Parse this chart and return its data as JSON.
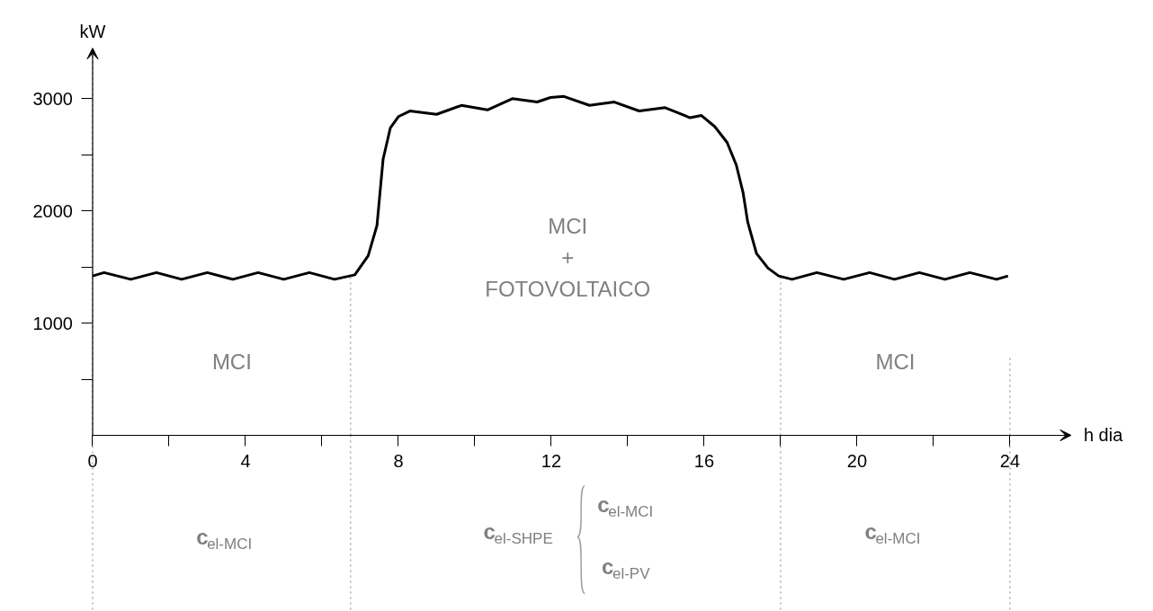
{
  "chart_data": {
    "type": "line",
    "xlabel": "h dia",
    "ylabel": "kW",
    "x": [
      0,
      0.3,
      1.0,
      1.67,
      2.33,
      3.0,
      3.67,
      4.33,
      5.0,
      5.67,
      6.33,
      6.86,
      7.21,
      7.44,
      7.6,
      7.79,
      8.0,
      8.3,
      9.0,
      9.65,
      10.33,
      10.98,
      11.63,
      11.98,
      12.33,
      13.0,
      13.65,
      14.3,
      14.98,
      15.63,
      15.93,
      16.28,
      16.6,
      16.84,
      17.02,
      17.14,
      17.37,
      17.67,
      17.95,
      18.3,
      18.95,
      19.65,
      20.33,
      20.98,
      21.63,
      22.3,
      22.95,
      23.65,
      23.95
    ],
    "series": [
      {
        "color": "#000000",
        "values": [
          1420,
          1450,
          1390,
          1450,
          1390,
          1450,
          1390,
          1450,
          1390,
          1450,
          1390,
          1430,
          1600,
          1870,
          2460,
          2740,
          2840,
          2890,
          2860,
          2940,
          2900,
          3000,
          2970,
          3010,
          3020,
          2940,
          2970,
          2890,
          2920,
          2830,
          2850,
          2750,
          2610,
          2410,
          2160,
          1900,
          1620,
          1490,
          1420,
          1390,
          1450,
          1390,
          1450,
          1390,
          1450,
          1390,
          1450,
          1390,
          1420
        ]
      }
    ],
    "xlim": [
      0,
      25.6
    ],
    "ylim": [
      0,
      3450
    ],
    "xticks": [
      0,
      {
        "value": 2,
        "label": null
      },
      4,
      {
        "value": 6,
        "label": null
      },
      8,
      {
        "value": 10,
        "label": null
      },
      12,
      {
        "value": 14,
        "label": null
      },
      16,
      {
        "value": 18,
        "label": null
      },
      20,
      {
        "value": 22,
        "label": null
      },
      24
    ],
    "yticks": [
      {
        "value": 500,
        "label": null
      },
      1000,
      {
        "value": 1500,
        "label": null
      },
      2000,
      {
        "value": 2500,
        "label": null
      },
      3000
    ],
    "grid": false,
    "marker": "none",
    "line_style": "solid",
    "ref_lines": [
      {
        "axis": "x",
        "value": 0,
        "label": null,
        "color": "#808080",
        "line_style": "dotted"
      },
      {
        "axis": "x",
        "value": 6.75,
        "label": null,
        "color": "#808080",
        "line_style": "dotted"
      },
      {
        "axis": "x",
        "value": 18,
        "label": null,
        "color": "#808080",
        "line_style": "dotted"
      },
      {
        "axis": "x",
        "value": 24,
        "label": null,
        "color": "#808080",
        "line_style": "dotted"
      }
    ],
    "annotations": [
      "MCI",
      "MCI\n+\nFOTOVOLTAICO",
      "MCI",
      "c$_{el-MCI}$",
      "c$_{el-SHPE}$",
      "c$_{el-MCI}$",
      "c$_{el-PV}$",
      "c$_{el-MCI}$"
    ]
  }
}
